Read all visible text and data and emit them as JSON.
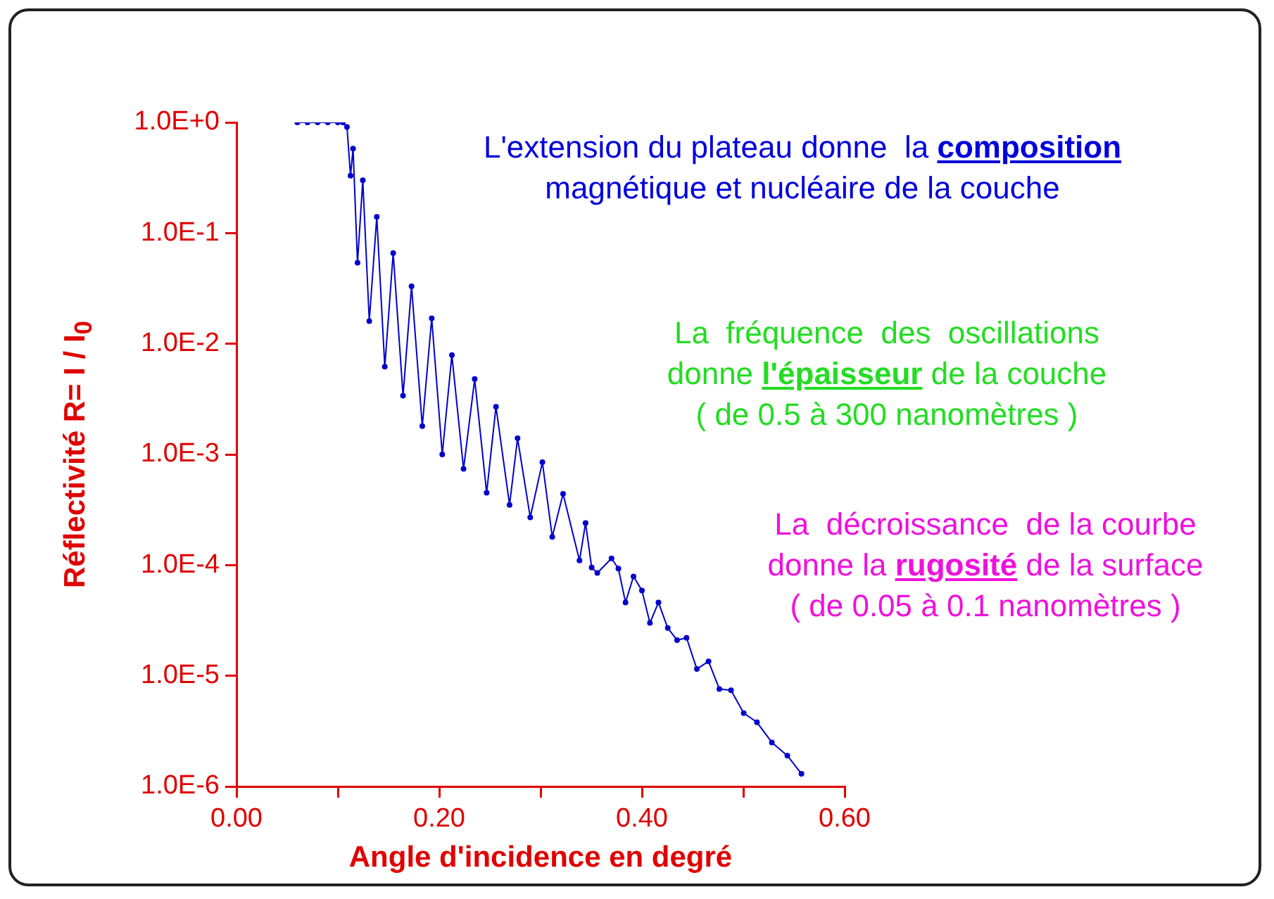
{
  "chart_data": {
    "type": "line",
    "xlabel": "Angle d'incidence en degré",
    "ylabel": "Réflectivité R= I / I$_{0}$",
    "log": "y",
    "grid": false,
    "legend": false,
    "marker": "circle",
    "line_style": "solid",
    "xlim": [
      0,
      0.6
    ],
    "xticks": [
      {
        "value": 0,
        "label": "0.00"
      },
      {
        "value": 0.1,
        "label": null
      },
      {
        "value": 0.2,
        "label": "0.20"
      },
      {
        "value": 0.3,
        "label": null
      },
      {
        "value": 0.4,
        "label": "0.40"
      },
      {
        "value": 0.5,
        "label": null
      },
      {
        "value": 0.6,
        "label": "0.60"
      }
    ],
    "ylim": [
      1e-06,
      1
    ],
    "yticks": [
      {
        "value": 1,
        "label": "1.0E+0"
      },
      {
        "value": 0.1,
        "label": "1.0E-1"
      },
      {
        "value": 0.01,
        "label": "1.0E-2"
      },
      {
        "value": 0.001,
        "label": "1.0E-3"
      },
      {
        "value": 0.0001,
        "label": "1.0E-4"
      },
      {
        "value": 1e-05,
        "label": "1.0E-5"
      },
      {
        "value": 1e-06,
        "label": "1.0E-6"
      }
    ],
    "series": [
      {
        "color": "#0000cc",
        "x": [
          0.06,
          0.07,
          0.08,
          0.09,
          0.1,
          0.105,
          0.109,
          0.1125,
          0.115,
          0.1194,
          0.1246,
          0.131,
          0.1384,
          0.1463,
          0.1546,
          0.1643,
          0.1727,
          0.1833,
          0.1926,
          0.203,
          0.2125,
          0.224,
          0.235,
          0.2468,
          0.256,
          0.2694,
          0.2773,
          0.2898,
          0.3018,
          0.3115,
          0.3222,
          0.3384,
          0.3444,
          0.3504,
          0.356,
          0.37,
          0.3768,
          0.3838,
          0.3917,
          0.4,
          0.4079,
          0.4163,
          0.4255,
          0.4347,
          0.444,
          0.4542,
          0.4657,
          0.4764,
          0.4879,
          0.5004,
          0.5135,
          0.5282,
          0.5435,
          0.5574
        ],
        "values": [
          1,
          1,
          1,
          1,
          1,
          1,
          0.91,
          0.33,
          0.58,
          0.054,
          0.3,
          0.016,
          0.14,
          0.0062,
          0.066,
          0.0034,
          0.033,
          0.0018,
          0.017,
          0.001,
          0.0079,
          0.00074,
          0.0048,
          0.00045,
          0.0027,
          0.00035,
          0.0014,
          0.00027,
          0.00085,
          0.00018,
          0.00044,
          0.00011,
          0.00024,
          9.5e-05,
          8.5e-05,
          0.000115,
          9.3e-05,
          4.6e-05,
          7.9e-05,
          5.9e-05,
          3e-05,
          4.6e-05,
          2.7e-05,
          2.1e-05,
          2.2e-05,
          1.15e-05,
          1.35e-05,
          7.6e-06,
          7.4e-06,
          4.6e-06,
          3.8e-06,
          2.5e-06,
          1.9e-06,
          1.3e-06
        ]
      }
    ],
    "annotations": [
      "L'extension du plateau donne  la",
      "composition",
      "magnétique et nucléaire de la couche",
      "La  fréquence  des  oscillations",
      "donne",
      "l'épaisseur",
      "de la couche",
      "( de 0.5 à 300 nanomètres )",
      "La  décroissance  de la courbe",
      "donne la",
      "rugosité",
      "de la surface",
      "( de 0.05 à 0.1 nanomètres )"
    ]
  }
}
